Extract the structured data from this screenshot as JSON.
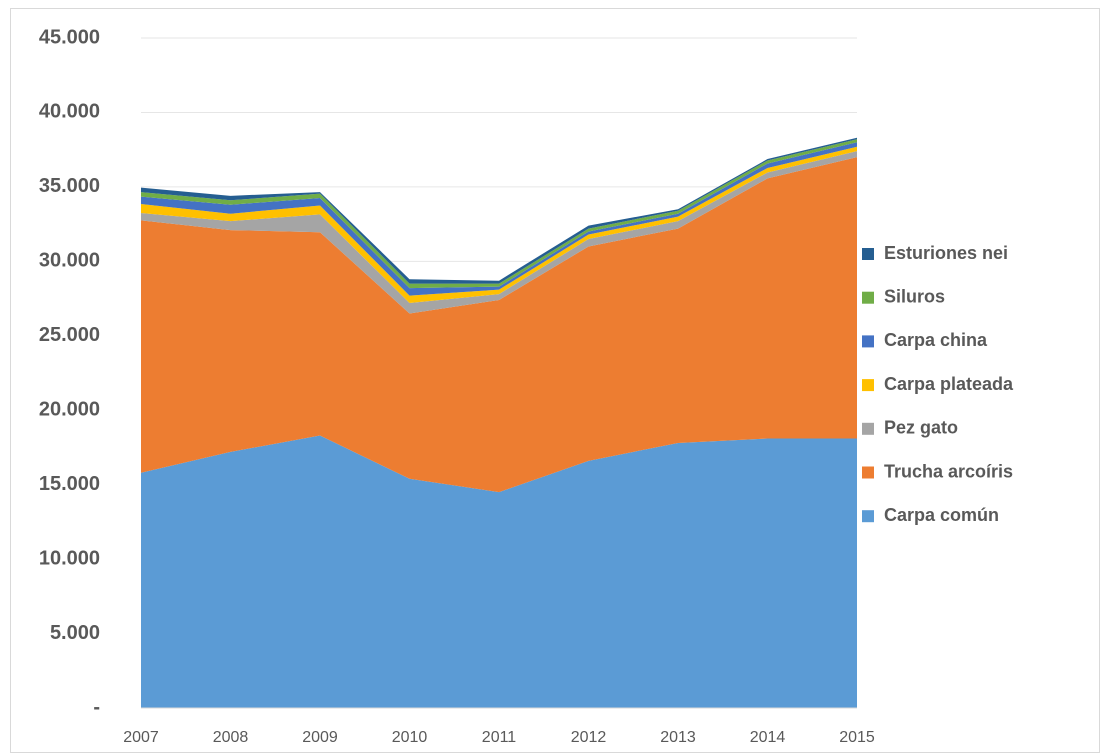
{
  "chart_data": {
    "type": "stacked_area",
    "categories": [
      "2007",
      "2008",
      "2009",
      "2010",
      "2011",
      "2012",
      "2013",
      "2014",
      "2015"
    ],
    "series": [
      {
        "name": "Carpa común",
        "color": "#5b9bd5",
        "values": [
          15800,
          17200,
          18300,
          15400,
          14500,
          16600,
          17800,
          18100,
          18100
        ]
      },
      {
        "name": "Trucha arcoíris",
        "color": "#ed7d31",
        "values": [
          16950,
          14900,
          13650,
          11100,
          12900,
          14400,
          14400,
          17470,
          18900
        ]
      },
      {
        "name": "Pez gato",
        "color": "#a5a5a5",
        "values": [
          500,
          600,
          1200,
          700,
          400,
          500,
          500,
          400,
          400
        ]
      },
      {
        "name": "Carpa plateada",
        "color": "#ffc000",
        "values": [
          600,
          500,
          600,
          500,
          300,
          300,
          300,
          300,
          300
        ]
      },
      {
        "name": "Carpa china",
        "color": "#4472c4",
        "values": [
          500,
          600,
          500,
          500,
          200,
          200,
          200,
          300,
          300
        ]
      },
      {
        "name": "Siluros",
        "color": "#70ad47",
        "values": [
          300,
          300,
          300,
          300,
          200,
          200,
          200,
          200,
          200
        ]
      },
      {
        "name": "Esturiones nei",
        "color": "#255e91",
        "values": [
          300,
          300,
          100,
          300,
          200,
          200,
          100,
          100,
          100
        ]
      }
    ],
    "ylim": [
      0,
      45000
    ],
    "yticks": [
      {
        "value": 0,
        "label": "-"
      },
      {
        "value": 5000,
        "label": "5.000"
      },
      {
        "value": 10000,
        "label": "10.000"
      },
      {
        "value": 15000,
        "label": "15.000"
      },
      {
        "value": 20000,
        "label": "20.000"
      },
      {
        "value": 25000,
        "label": "25.000"
      },
      {
        "value": 30000,
        "label": "30.000"
      },
      {
        "value": 35000,
        "label": "35.000"
      },
      {
        "value": 40000,
        "label": "40.000"
      },
      {
        "value": 45000,
        "label": "45.000"
      }
    ],
    "grid": true,
    "legend": "right"
  }
}
